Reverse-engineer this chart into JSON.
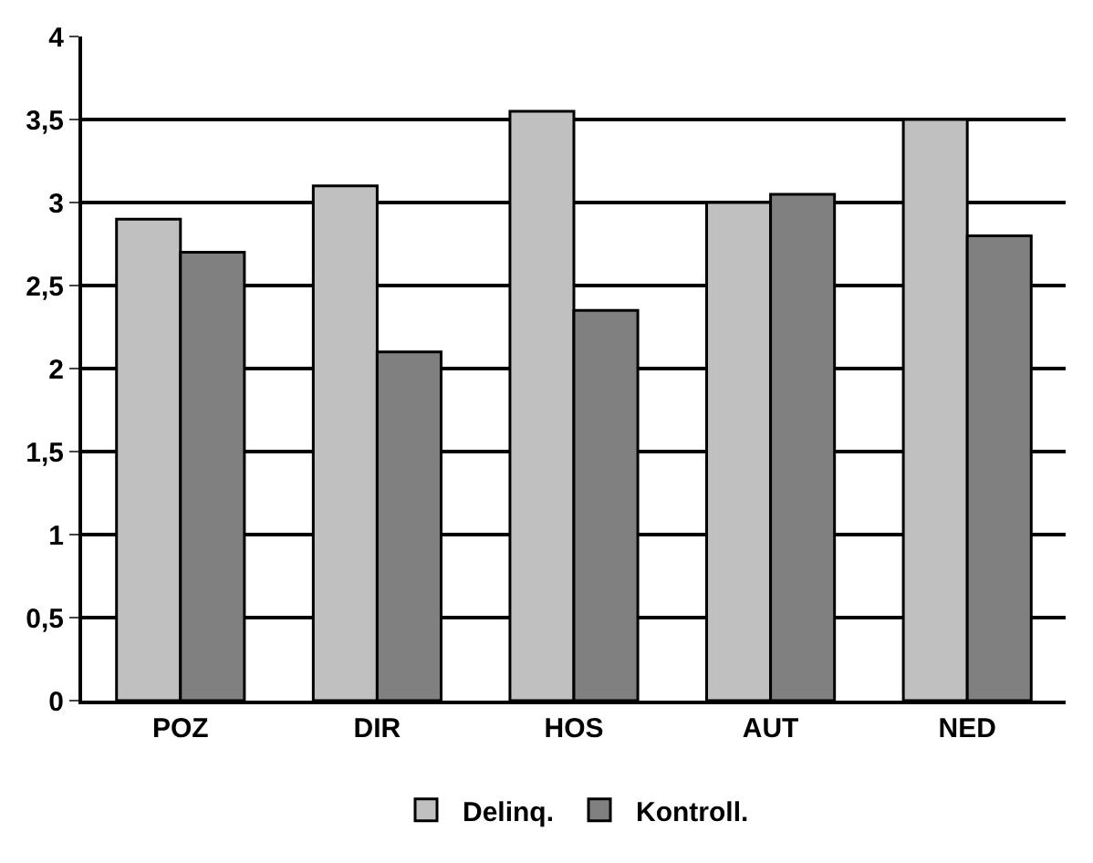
{
  "chart_data": {
    "type": "bar",
    "categories": [
      "POZ",
      "DIR",
      "HOS",
      "AUT",
      "NED"
    ],
    "series": [
      {
        "name": "Delinq.",
        "color": "#c0c0c0",
        "values": [
          2.9,
          3.1,
          3.55,
          3.0,
          3.5
        ]
      },
      {
        "name": "Kontroll.",
        "color": "#808080",
        "values": [
          2.7,
          2.1,
          2.35,
          3.05,
          2.8
        ]
      }
    ],
    "ylim": [
      0,
      4
    ],
    "yticks": [
      0,
      {
        "value": 0.5,
        "label": "0,5"
      },
      1,
      {
        "value": 1.5,
        "label": "1,5"
      },
      2,
      {
        "value": 2.5,
        "label": "2,5"
      },
      3,
      {
        "value": 3.5,
        "label": "3,5"
      },
      4
    ],
    "grid": "y",
    "legend": "bottom"
  }
}
